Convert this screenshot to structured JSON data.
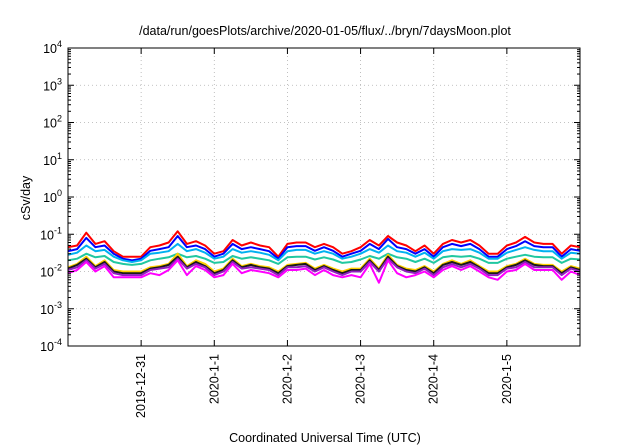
{
  "chart_data": {
    "type": "line",
    "title": "/data/run/goesPlots/archive/2020-01-05/flux/../bryn/7daysMoon.plot",
    "xlabel": "Coordinated Universal Time (UTC)",
    "ylabel": "cSv/day",
    "yscale": "log",
    "ylim": [
      0.0001,
      10000
    ],
    "xlim": [
      "2019-12-30 00:00",
      "2020-01-06 00:00"
    ],
    "grid": true,
    "y_ticks": [
      {
        "value": 0.0001,
        "base": "10",
        "exp": "-4"
      },
      {
        "value": 0.001,
        "base": "10",
        "exp": "-3"
      },
      {
        "value": 0.01,
        "base": "10",
        "exp": "-2"
      },
      {
        "value": 0.1,
        "base": "10",
        "exp": "-1"
      },
      {
        "value": 1,
        "base": "10",
        "exp": "0"
      },
      {
        "value": 10,
        "base": "10",
        "exp": "1"
      },
      {
        "value": 100,
        "base": "10",
        "exp": "2"
      },
      {
        "value": 1000,
        "base": "10",
        "exp": "3"
      },
      {
        "value": 10000,
        "base": "10",
        "exp": "4"
      }
    ],
    "x_ticks": [
      {
        "value": "2019-12-31",
        "label": "2019-12-31"
      },
      {
        "value": "2020-01-01",
        "label": "2020-1-1"
      },
      {
        "value": "2020-01-02",
        "label": "2020-1-2"
      },
      {
        "value": "2020-01-03",
        "label": "2020-1-3"
      },
      {
        "value": "2020-01-04",
        "label": "2020-1-4"
      },
      {
        "value": "2020-01-05",
        "label": "2020-1-5"
      }
    ],
    "x_values": [
      "2019-12-30 00:00",
      "2019-12-30 03:00",
      "2019-12-30 06:00",
      "2019-12-30 09:00",
      "2019-12-30 12:00",
      "2019-12-30 15:00",
      "2019-12-30 18:00",
      "2019-12-30 21:00",
      "2019-12-31 00:00",
      "2019-12-31 03:00",
      "2019-12-31 06:00",
      "2019-12-31 09:00",
      "2019-12-31 12:00",
      "2019-12-31 15:00",
      "2019-12-31 18:00",
      "2019-12-31 21:00",
      "2020-01-01 00:00",
      "2020-01-01 03:00",
      "2020-01-01 06:00",
      "2020-01-01 09:00",
      "2020-01-01 12:00",
      "2020-01-01 15:00",
      "2020-01-01 18:00",
      "2020-01-01 21:00",
      "2020-01-02 00:00",
      "2020-01-02 03:00",
      "2020-01-02 06:00",
      "2020-01-02 09:00",
      "2020-01-02 12:00",
      "2020-01-02 15:00",
      "2020-01-02 18:00",
      "2020-01-02 21:00",
      "2020-01-03 00:00",
      "2020-01-03 03:00",
      "2020-01-03 06:00",
      "2020-01-03 09:00",
      "2020-01-03 12:00",
      "2020-01-03 15:00",
      "2020-01-03 18:00",
      "2020-01-03 21:00",
      "2020-01-04 00:00",
      "2020-01-04 03:00",
      "2020-01-04 06:00",
      "2020-01-04 09:00",
      "2020-01-04 12:00",
      "2020-01-04 15:00",
      "2020-01-04 18:00",
      "2020-01-04 21:00",
      "2020-01-05 00:00",
      "2020-01-05 03:00",
      "2020-01-05 06:00",
      "2020-01-05 09:00",
      "2020-01-05 12:00",
      "2020-01-05 15:00",
      "2020-01-05 18:00",
      "2020-01-05 21:00",
      "2020-01-06 00:00"
    ],
    "series": [
      {
        "color": "#ff0000",
        "values": [
          0.045,
          0.05,
          0.11,
          0.055,
          0.065,
          0.035,
          0.025,
          0.025,
          0.025,
          0.045,
          0.05,
          0.06,
          0.12,
          0.055,
          0.065,
          0.05,
          0.03,
          0.035,
          0.07,
          0.05,
          0.06,
          0.05,
          0.045,
          0.025,
          0.055,
          0.06,
          0.06,
          0.045,
          0.055,
          0.045,
          0.03,
          0.035,
          0.045,
          0.07,
          0.05,
          0.09,
          0.06,
          0.05,
          0.035,
          0.05,
          0.03,
          0.055,
          0.07,
          0.06,
          0.07,
          0.05,
          0.03,
          0.03,
          0.05,
          0.06,
          0.085,
          0.06,
          0.055,
          0.055,
          0.03,
          0.05,
          0.045
        ]
      },
      {
        "color": "#0000ff",
        "values": [
          0.035,
          0.04,
          0.08,
          0.045,
          0.05,
          0.03,
          0.022,
          0.02,
          0.022,
          0.036,
          0.04,
          0.045,
          0.09,
          0.045,
          0.05,
          0.04,
          0.025,
          0.03,
          0.055,
          0.04,
          0.045,
          0.04,
          0.035,
          0.022,
          0.045,
          0.048,
          0.048,
          0.036,
          0.045,
          0.036,
          0.025,
          0.03,
          0.036,
          0.055,
          0.04,
          0.075,
          0.045,
          0.04,
          0.03,
          0.04,
          0.025,
          0.045,
          0.055,
          0.048,
          0.055,
          0.04,
          0.025,
          0.025,
          0.04,
          0.048,
          0.065,
          0.048,
          0.045,
          0.045,
          0.025,
          0.04,
          0.036
        ]
      },
      {
        "color": "#00b0f0",
        "values": [
          0.028,
          0.032,
          0.05,
          0.035,
          0.038,
          0.025,
          0.02,
          0.018,
          0.02,
          0.03,
          0.032,
          0.035,
          0.055,
          0.035,
          0.04,
          0.032,
          0.022,
          0.025,
          0.04,
          0.032,
          0.035,
          0.032,
          0.028,
          0.02,
          0.035,
          0.038,
          0.038,
          0.03,
          0.035,
          0.03,
          0.022,
          0.025,
          0.03,
          0.04,
          0.032,
          0.05,
          0.035,
          0.032,
          0.025,
          0.032,
          0.022,
          0.035,
          0.04,
          0.038,
          0.04,
          0.032,
          0.022,
          0.022,
          0.032,
          0.038,
          0.045,
          0.038,
          0.035,
          0.035,
          0.022,
          0.032,
          0.03
        ]
      },
      {
        "color": "#20c8a0",
        "values": [
          0.02,
          0.022,
          0.03,
          0.024,
          0.026,
          0.018,
          0.016,
          0.015,
          0.016,
          0.02,
          0.022,
          0.024,
          0.03,
          0.024,
          0.026,
          0.022,
          0.017,
          0.018,
          0.026,
          0.022,
          0.024,
          0.022,
          0.02,
          0.016,
          0.024,
          0.025,
          0.025,
          0.021,
          0.024,
          0.021,
          0.017,
          0.018,
          0.021,
          0.026,
          0.022,
          0.03,
          0.024,
          0.022,
          0.018,
          0.022,
          0.017,
          0.024,
          0.026,
          0.025,
          0.026,
          0.022,
          0.017,
          0.017,
          0.022,
          0.025,
          0.028,
          0.025,
          0.024,
          0.024,
          0.017,
          0.022,
          0.021
        ]
      },
      {
        "color": "#ffd000",
        "values": [
          0.013,
          0.016,
          0.025,
          0.014,
          0.02,
          0.011,
          0.01,
          0.01,
          0.01,
          0.013,
          0.014,
          0.016,
          0.03,
          0.014,
          0.02,
          0.016,
          0.01,
          0.012,
          0.022,
          0.014,
          0.016,
          0.014,
          0.013,
          0.01,
          0.015,
          0.016,
          0.017,
          0.012,
          0.015,
          0.012,
          0.01,
          0.012,
          0.012,
          0.022,
          0.012,
          0.028,
          0.015,
          0.012,
          0.011,
          0.014,
          0.01,
          0.016,
          0.02,
          0.016,
          0.02,
          0.014,
          0.01,
          0.01,
          0.014,
          0.016,
          0.022,
          0.016,
          0.015,
          0.015,
          0.01,
          0.014,
          0.012
        ]
      },
      {
        "color": "#1a1a1a",
        "values": [
          0.012,
          0.015,
          0.022,
          0.013,
          0.018,
          0.01,
          0.009,
          0.009,
          0.009,
          0.012,
          0.013,
          0.015,
          0.025,
          0.013,
          0.018,
          0.014,
          0.009,
          0.011,
          0.02,
          0.013,
          0.015,
          0.013,
          0.012,
          0.009,
          0.014,
          0.015,
          0.016,
          0.011,
          0.014,
          0.011,
          0.009,
          0.011,
          0.011,
          0.02,
          0.011,
          0.025,
          0.014,
          0.011,
          0.01,
          0.013,
          0.009,
          0.015,
          0.018,
          0.015,
          0.018,
          0.013,
          0.009,
          0.009,
          0.013,
          0.015,
          0.02,
          0.015,
          0.014,
          0.014,
          0.009,
          0.013,
          0.011
        ]
      },
      {
        "color": "#9020c0",
        "values": [
          0.011,
          0.013,
          0.02,
          0.012,
          0.016,
          0.009,
          0.008,
          0.008,
          0.008,
          0.011,
          0.012,
          0.013,
          0.022,
          0.012,
          0.016,
          0.013,
          0.008,
          0.01,
          0.018,
          0.012,
          0.013,
          0.012,
          0.011,
          0.008,
          0.013,
          0.013,
          0.014,
          0.01,
          0.013,
          0.01,
          0.008,
          0.01,
          0.01,
          0.018,
          0.01,
          0.022,
          0.013,
          0.01,
          0.009,
          0.012,
          0.008,
          0.013,
          0.016,
          0.013,
          0.016,
          0.012,
          0.008,
          0.008,
          0.012,
          0.013,
          0.018,
          0.013,
          0.013,
          0.013,
          0.008,
          0.012,
          0.01
        ]
      },
      {
        "color": "#ff00ff",
        "values": [
          0.009,
          0.011,
          0.018,
          0.01,
          0.014,
          0.007,
          0.007,
          0.007,
          0.007,
          0.009,
          0.008,
          0.011,
          0.02,
          0.008,
          0.014,
          0.011,
          0.007,
          0.008,
          0.016,
          0.009,
          0.011,
          0.01,
          0.009,
          0.007,
          0.011,
          0.011,
          0.012,
          0.008,
          0.011,
          0.008,
          0.007,
          0.008,
          0.007,
          0.016,
          0.005,
          0.02,
          0.009,
          0.007,
          0.008,
          0.01,
          0.007,
          0.011,
          0.014,
          0.011,
          0.014,
          0.01,
          0.007,
          0.006,
          0.01,
          0.011,
          0.016,
          0.011,
          0.011,
          0.011,
          0.006,
          0.01,
          0.008
        ]
      }
    ]
  }
}
